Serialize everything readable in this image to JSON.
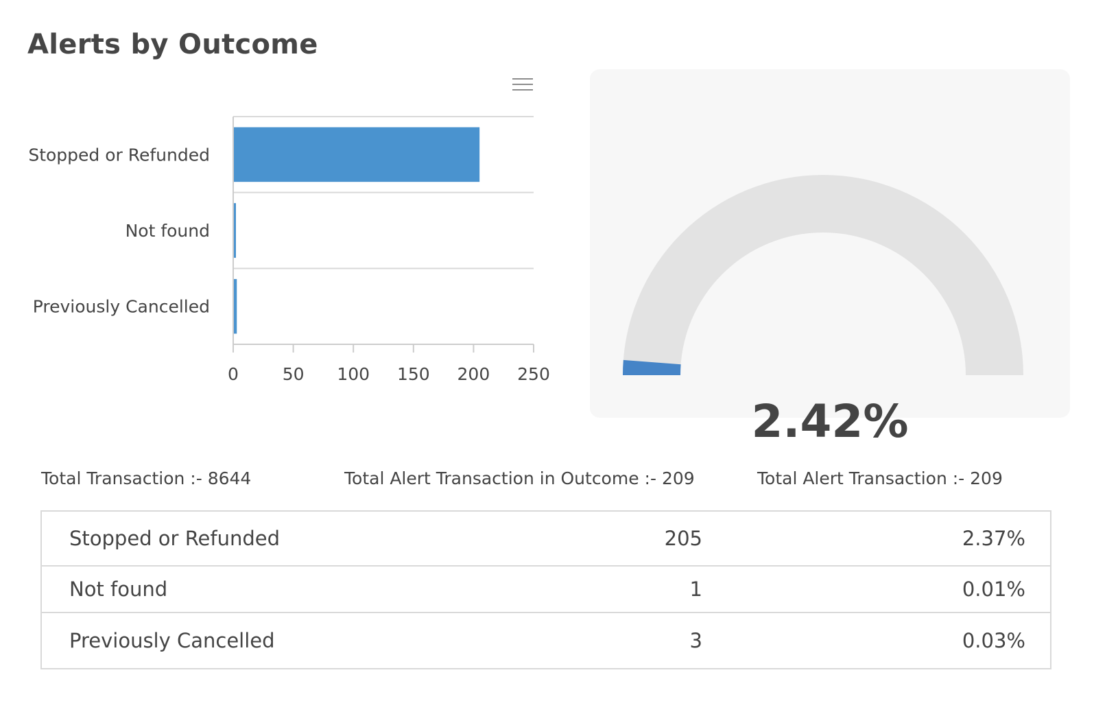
{
  "page": {
    "title": "Alerts by Outcome"
  },
  "chart_menu": {
    "icon": "hamburger-menu-icon"
  },
  "colors": {
    "bar": "#4a93cf",
    "gauge_fill": "#4584c7",
    "gauge_track": "#e3e3e3",
    "card_bg": "#f7f7f7"
  },
  "chart_data": [
    {
      "type": "bar",
      "orientation": "horizontal",
      "categories": [
        "Stopped or Refunded",
        "Not found",
        "Previously Cancelled"
      ],
      "values": [
        205,
        1,
        3
      ],
      "xlim": [
        0,
        250
      ],
      "xticks": [
        0,
        50,
        100,
        150,
        200,
        250
      ],
      "grid": true
    },
    {
      "type": "gauge",
      "value": 2.42,
      "min": 0,
      "max": 100,
      "label": "2.42%"
    }
  ],
  "totals": [
    {
      "label": "Total Transaction",
      "value": "8644"
    },
    {
      "label": "Total Alert Transaction in Outcome",
      "value": "209"
    },
    {
      "label": "Total Alert Transaction",
      "value": "209"
    }
  ],
  "table": {
    "rows": [
      {
        "name": "Stopped or Refunded",
        "count": "205",
        "percent": "2.37%"
      },
      {
        "name": "Not found",
        "count": "1",
        "percent": "0.01%"
      },
      {
        "name": "Previously Cancelled",
        "count": "3",
        "percent": "0.03%"
      }
    ]
  }
}
